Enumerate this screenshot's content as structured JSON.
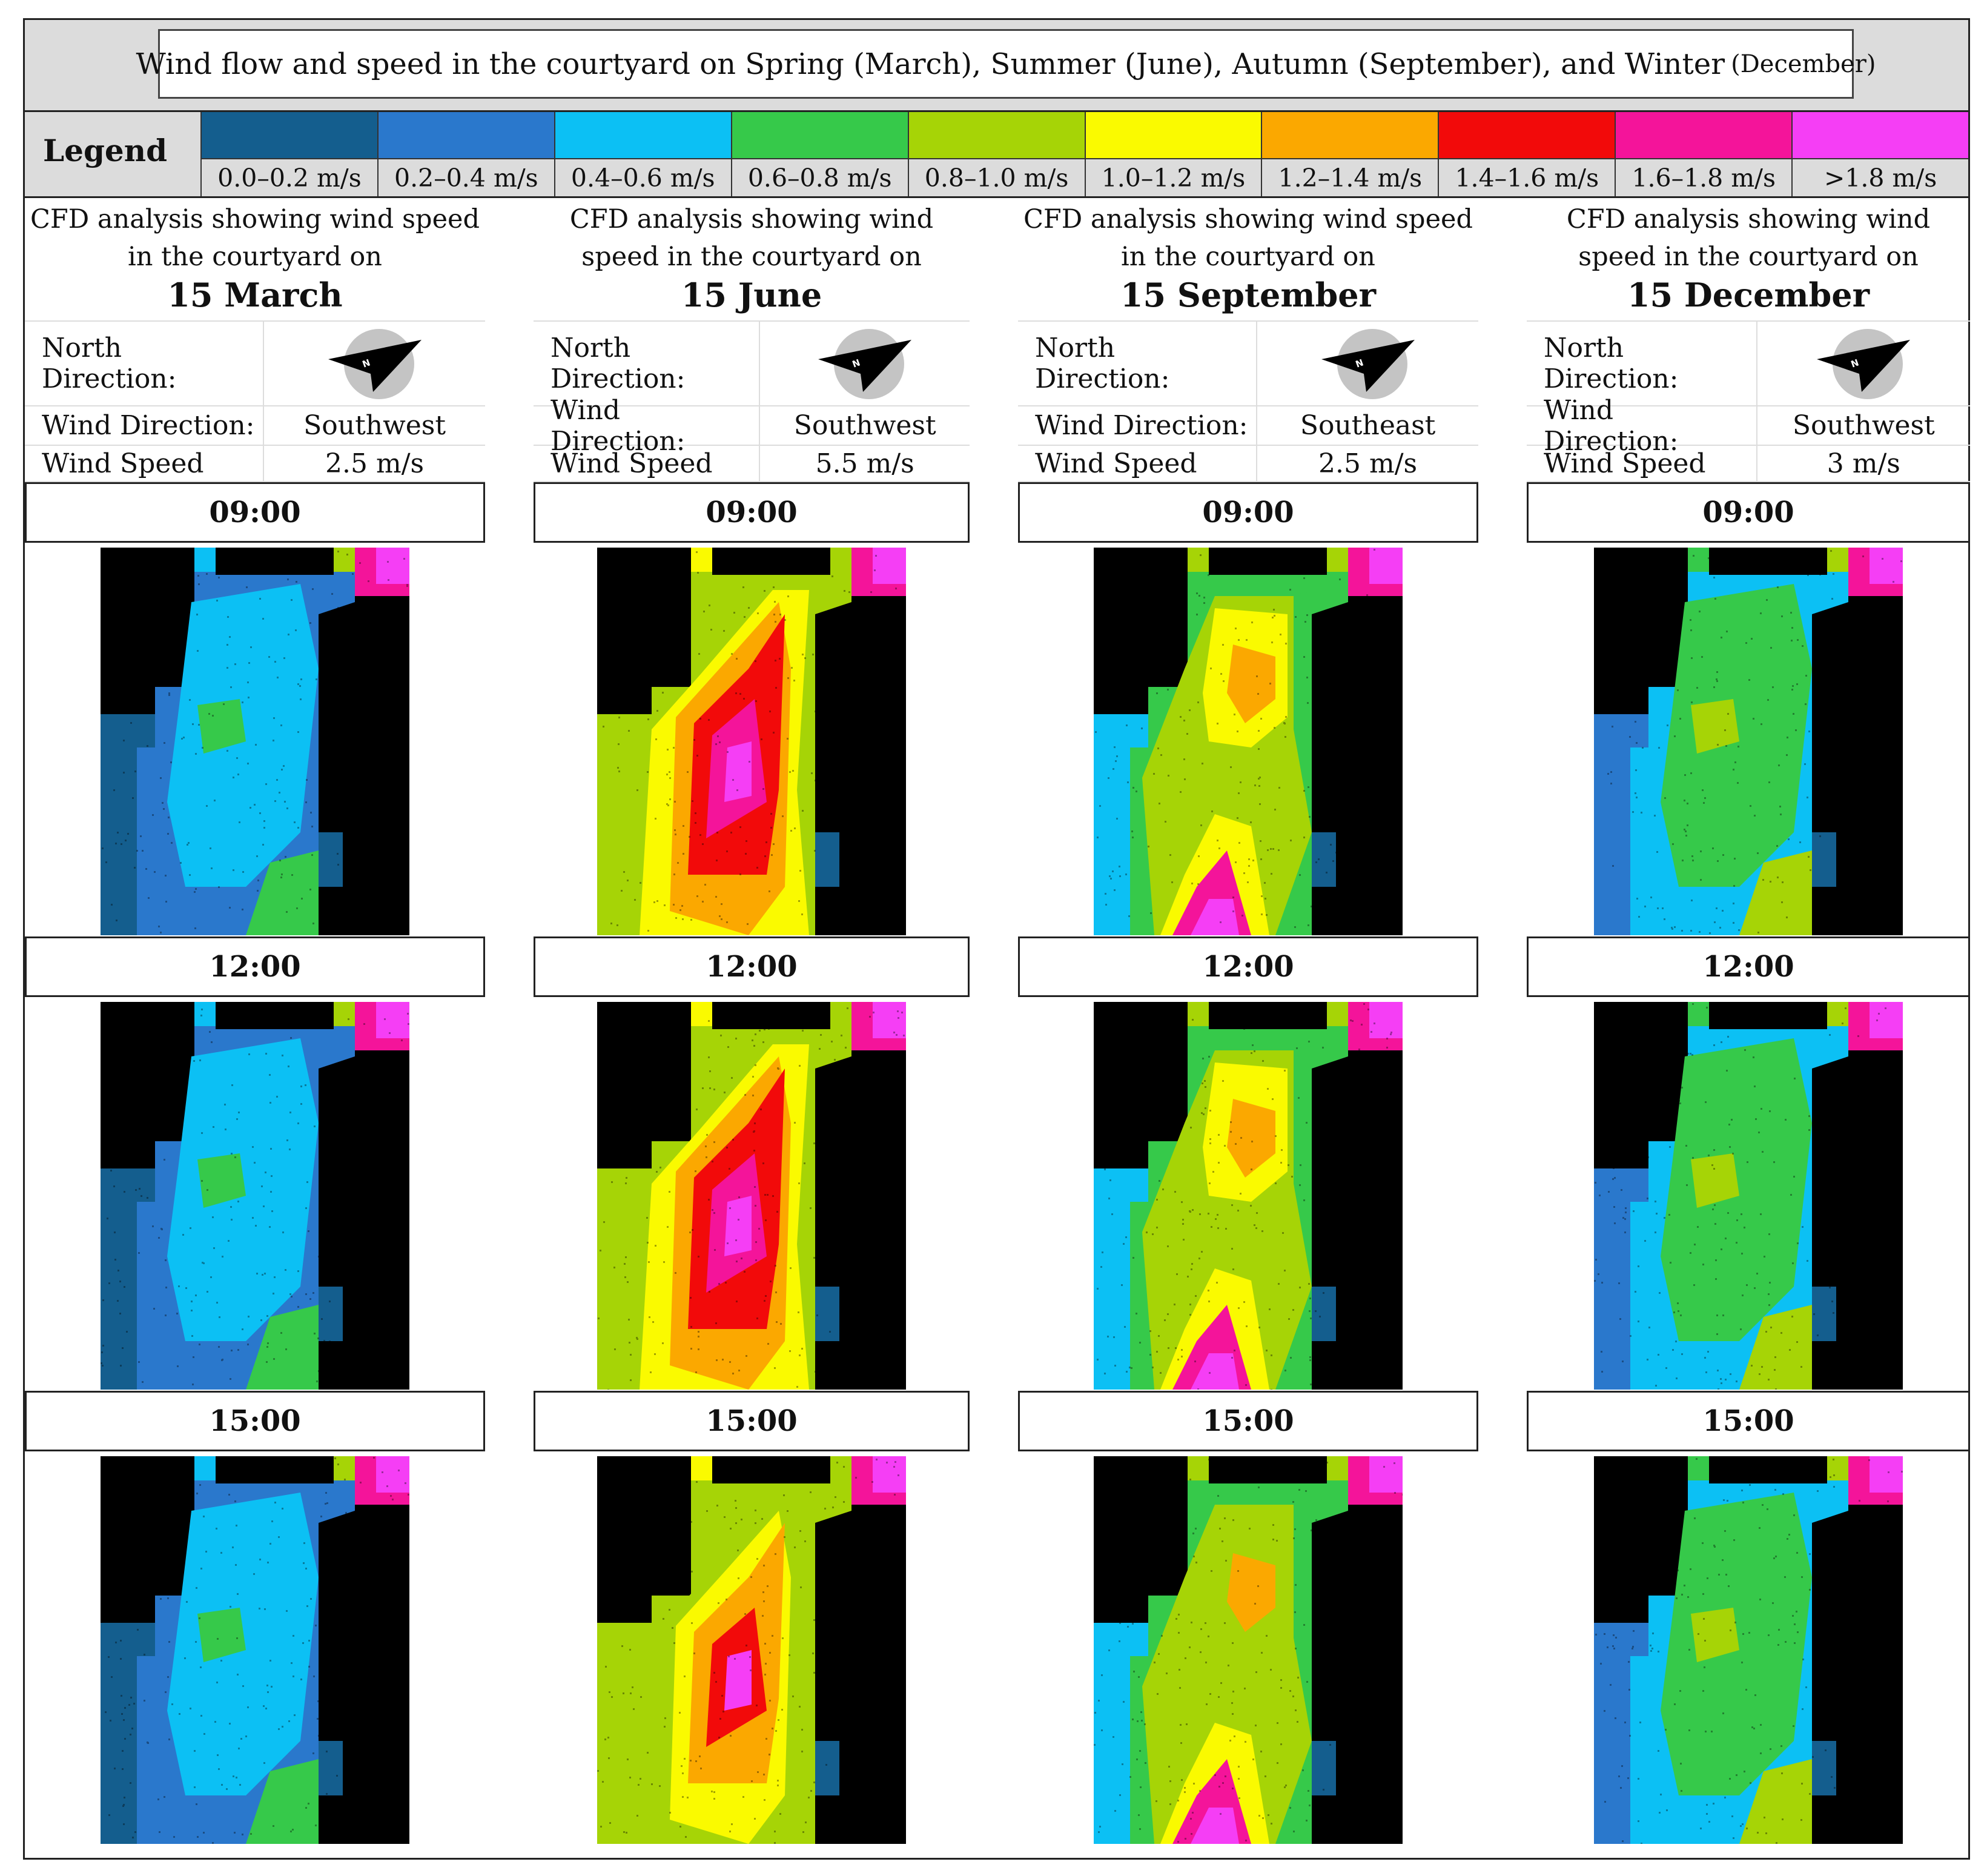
{
  "title": {
    "main": "Wind flow and speed in the courtyard on Spring (March), Summer (June), Autumn (September), and Winter",
    "suffix": "(December)"
  },
  "legend": {
    "label": "Legend",
    "items": [
      {
        "label": "0.0–0.2 m/s",
        "color": "#145e8e"
      },
      {
        "label": "0.2–0.4 m/s",
        "color": "#2a78cc"
      },
      {
        "label": "0.4–0.6 m/s",
        "color": "#0cc0f4"
      },
      {
        "label": "0.6–0.8 m/s",
        "color": "#36c94a"
      },
      {
        "label": "0.8–1.0 m/s",
        "color": "#a6d406"
      },
      {
        "label": "1.0–1.2 m/s",
        "color": "#fafa00"
      },
      {
        "label": "1.2–1.4 m/s",
        "color": "#fba800"
      },
      {
        "label": "1.4–1.6 m/s",
        "color": "#f20a0a"
      },
      {
        "label": "1.6–1.8 m/s",
        "color": "#f4149a"
      },
      {
        "label": ">1.8 m/s",
        "color": "#f53ef5"
      }
    ]
  },
  "columns": [
    {
      "desc": "CFD analysis showing wind speed in the courtyard on",
      "date": "15 March",
      "north_label": "North Direction:",
      "wind_dir_label": "Wind Direction:",
      "wind_dir": "Southwest",
      "wind_speed_label": "Wind Speed",
      "wind_speed": "2.5 m/s",
      "scenario": "low"
    },
    {
      "desc": "CFD analysis showing wind speed in the courtyard on",
      "date": "15 June",
      "north_label": "North Direction:",
      "wind_dir_label": "Wind Direction:",
      "wind_dir": "Southwest",
      "wind_speed_label": "Wind Speed",
      "wind_speed": "5.5 m/s",
      "scenario": "high"
    },
    {
      "desc": "CFD analysis showing wind speed in the courtyard on",
      "date": "15 September",
      "north_label": "North Direction:",
      "wind_dir_label": "Wind Direction:",
      "wind_dir": "Southeast",
      "wind_speed_label": "Wind Speed",
      "wind_speed": "2.5 m/s",
      "scenario": "mid"
    },
    {
      "desc": "CFD analysis showing wind speed in the courtyard on",
      "date": "15 December",
      "north_label": "North Direction:",
      "wind_dir_label": "Wind Direction:",
      "wind_dir": "Southwest",
      "wind_speed_label": "Wind Speed",
      "wind_speed": "3 m/s",
      "scenario": "lowmid"
    }
  ],
  "times": [
    "09:00",
    "12:00",
    "15:00"
  ],
  "compass_letter": "N"
}
